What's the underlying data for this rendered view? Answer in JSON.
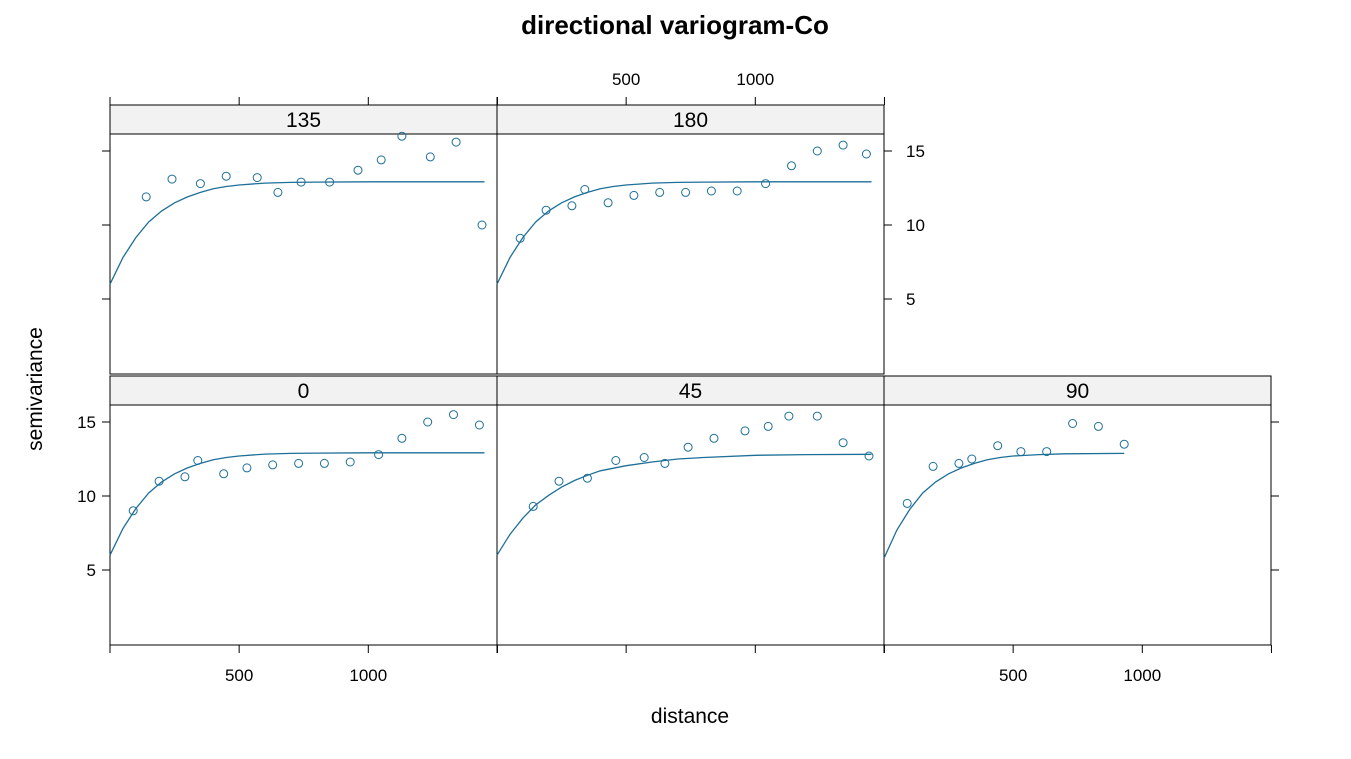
{
  "chart_data": {
    "type": "scatter",
    "title": "directional variogram-Co",
    "xlabel": "distance",
    "ylabel": "semivariance",
    "xlim": [
      0,
      1500
    ],
    "ylim": [
      0,
      17
    ],
    "x_ticks": [
      500,
      1000
    ],
    "y_ticks": [
      5,
      10,
      15
    ],
    "grid": false,
    "panels": [
      {
        "label": "135",
        "points": [
          [
            140,
            11.9
          ],
          [
            240,
            13.1
          ],
          [
            350,
            12.8
          ],
          [
            450,
            13.3
          ],
          [
            570,
            13.2
          ],
          [
            650,
            12.2
          ],
          [
            740,
            12.9
          ],
          [
            850,
            12.9
          ],
          [
            960,
            13.7
          ],
          [
            1050,
            14.4
          ],
          [
            1130,
            16.0
          ],
          [
            1240,
            14.6
          ],
          [
            1340,
            15.6
          ],
          [
            1440,
            10.0
          ]
        ],
        "model": [
          [
            0,
            6.0
          ],
          [
            50,
            7.8
          ],
          [
            100,
            9.15
          ],
          [
            150,
            10.2
          ],
          [
            200,
            10.95
          ],
          [
            250,
            11.5
          ],
          [
            300,
            11.9
          ],
          [
            350,
            12.2
          ],
          [
            400,
            12.45
          ],
          [
            450,
            12.6
          ],
          [
            500,
            12.7
          ],
          [
            600,
            12.83
          ],
          [
            700,
            12.88
          ],
          [
            800,
            12.9
          ],
          [
            1000,
            12.92
          ],
          [
            1450,
            12.92
          ]
        ]
      },
      {
        "label": "180",
        "points": [
          [
            90,
            9.1
          ],
          [
            190,
            11.0
          ],
          [
            290,
            11.3
          ],
          [
            340,
            12.4
          ],
          [
            430,
            11.5
          ],
          [
            530,
            12.0
          ],
          [
            630,
            12.2
          ],
          [
            730,
            12.2
          ],
          [
            830,
            12.3
          ],
          [
            930,
            12.3
          ],
          [
            1040,
            12.8
          ],
          [
            1140,
            14.0
          ],
          [
            1240,
            15.0
          ],
          [
            1340,
            15.4
          ],
          [
            1430,
            14.8
          ]
        ],
        "model": [
          [
            0,
            6.0
          ],
          [
            50,
            7.8
          ],
          [
            100,
            9.15
          ],
          [
            150,
            10.2
          ],
          [
            200,
            10.95
          ],
          [
            250,
            11.5
          ],
          [
            300,
            11.9
          ],
          [
            350,
            12.2
          ],
          [
            400,
            12.45
          ],
          [
            450,
            12.6
          ],
          [
            500,
            12.7
          ],
          [
            600,
            12.83
          ],
          [
            700,
            12.88
          ],
          [
            800,
            12.9
          ],
          [
            1000,
            12.92
          ],
          [
            1450,
            12.92
          ]
        ]
      },
      {
        "label": "0",
        "points": [
          [
            90,
            9.0
          ],
          [
            190,
            11.0
          ],
          [
            290,
            11.3
          ],
          [
            340,
            12.4
          ],
          [
            440,
            11.5
          ],
          [
            530,
            11.9
          ],
          [
            630,
            12.1
          ],
          [
            730,
            12.2
          ],
          [
            830,
            12.2
          ],
          [
            930,
            12.3
          ],
          [
            1040,
            12.8
          ],
          [
            1130,
            13.9
          ],
          [
            1230,
            15.0
          ],
          [
            1330,
            15.5
          ],
          [
            1430,
            14.8
          ]
        ],
        "model": [
          [
            0,
            6.0
          ],
          [
            50,
            7.8
          ],
          [
            100,
            9.15
          ],
          [
            150,
            10.2
          ],
          [
            200,
            10.95
          ],
          [
            250,
            11.5
          ],
          [
            300,
            11.9
          ],
          [
            350,
            12.2
          ],
          [
            400,
            12.45
          ],
          [
            450,
            12.6
          ],
          [
            500,
            12.7
          ],
          [
            600,
            12.83
          ],
          [
            700,
            12.88
          ],
          [
            800,
            12.9
          ],
          [
            1000,
            12.92
          ],
          [
            1450,
            12.92
          ]
        ]
      },
      {
        "label": "45",
        "points": [
          [
            140,
            9.3
          ],
          [
            240,
            11.0
          ],
          [
            350,
            11.2
          ],
          [
            460,
            12.4
          ],
          [
            570,
            12.6
          ],
          [
            650,
            12.2
          ],
          [
            740,
            13.3
          ],
          [
            840,
            13.9
          ],
          [
            960,
            14.4
          ],
          [
            1050,
            14.7
          ],
          [
            1130,
            15.4
          ],
          [
            1240,
            15.4
          ],
          [
            1340,
            13.6
          ],
          [
            1440,
            12.7
          ]
        ],
        "model": [
          [
            0,
            6.0
          ],
          [
            50,
            7.4
          ],
          [
            100,
            8.5
          ],
          [
            150,
            9.4
          ],
          [
            200,
            10.05
          ],
          [
            250,
            10.6
          ],
          [
            300,
            11.05
          ],
          [
            350,
            11.4
          ],
          [
            400,
            11.7
          ],
          [
            500,
            12.05
          ],
          [
            600,
            12.3
          ],
          [
            700,
            12.5
          ],
          [
            800,
            12.6
          ],
          [
            1000,
            12.75
          ],
          [
            1200,
            12.8
          ],
          [
            1450,
            12.82
          ]
        ]
      },
      {
        "label": "90",
        "points": [
          [
            90,
            9.5
          ],
          [
            190,
            12.0
          ],
          [
            290,
            12.2
          ],
          [
            340,
            12.5
          ],
          [
            440,
            13.4
          ],
          [
            530,
            13.0
          ],
          [
            630,
            13.0
          ],
          [
            730,
            14.9
          ],
          [
            830,
            14.7
          ],
          [
            930,
            13.5
          ]
        ],
        "model": [
          [
            0,
            5.8
          ],
          [
            50,
            7.7
          ],
          [
            100,
            9.1
          ],
          [
            150,
            10.2
          ],
          [
            200,
            10.95
          ],
          [
            250,
            11.5
          ],
          [
            300,
            11.9
          ],
          [
            350,
            12.2
          ],
          [
            400,
            12.45
          ],
          [
            450,
            12.6
          ],
          [
            500,
            12.7
          ],
          [
            600,
            12.8
          ],
          [
            700,
            12.85
          ],
          [
            930,
            12.88
          ]
        ]
      }
    ]
  },
  "colors": {
    "point": "#1E6F98",
    "line": "#1E6F98",
    "strip": "#F2F2F2"
  }
}
